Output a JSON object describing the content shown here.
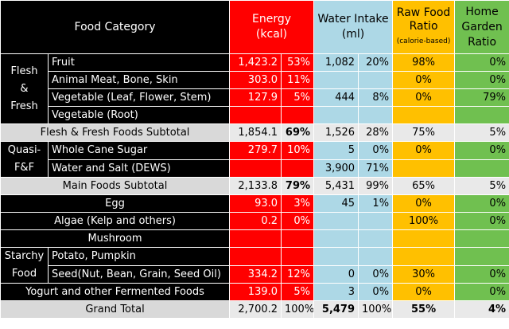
{
  "headers": {
    "category": "Food Category",
    "energy_l1": "Energy",
    "energy_l2": "(kcal)",
    "water_l1": "Water Intake",
    "water_l2": "(ml)",
    "raw_l1": "Raw Food",
    "raw_l2": "Ratio",
    "raw_l3": "(calorie-based)",
    "home_l1": "Home",
    "home_l2": "Garden",
    "home_l3": "Ratio"
  },
  "groups": {
    "flesh_l1": "Flesh",
    "flesh_l2": "&",
    "flesh_l3": "Fresh",
    "quasi_l1": "Quasi-",
    "quasi_l2": "F&F",
    "starchy_l1": "Starchy",
    "starchy_l2": "Food"
  },
  "rows": {
    "fruit": {
      "label": "Fruit",
      "energy": "1,423.2",
      "energy_pct": "53%",
      "water": "1,082",
      "water_pct": "20%",
      "raw": "98%",
      "home": "0%"
    },
    "meat": {
      "label": "Animal Meat, Bone, Skin",
      "energy": "303.0",
      "energy_pct": "11%",
      "water": "",
      "water_pct": "",
      "raw": "0%",
      "home": "0%"
    },
    "veg_leaf": {
      "label": "Vegetable (Leaf, Flower, Stem)",
      "energy": "127.9",
      "energy_pct": "5%",
      "water": "444",
      "water_pct": "8%",
      "raw": "0%",
      "home": "79%"
    },
    "veg_root": {
      "label": "Vegetable (Root)",
      "energy": "",
      "energy_pct": "",
      "water": "",
      "water_pct": "",
      "raw": "",
      "home": ""
    },
    "flesh_sub": {
      "label": "Flesh & Fresh Foods Subtotal",
      "energy": "1,854.1",
      "energy_pct": "69%",
      "water": "1,526",
      "water_pct": "28%",
      "raw": "75%",
      "home": "5%"
    },
    "sugar": {
      "label": "Whole Cane Sugar",
      "energy": "279.7",
      "energy_pct": "10%",
      "water": "5",
      "water_pct": "0%",
      "raw": "0%",
      "home": "0%"
    },
    "salt": {
      "label": "Water and Salt (DEWS)",
      "energy": "",
      "energy_pct": "",
      "water": "3,900",
      "water_pct": "71%",
      "raw": "",
      "home": ""
    },
    "main_sub": {
      "label": "Main Foods Subtotal",
      "energy": "2,133.8",
      "energy_pct": "79%",
      "water": "5,431",
      "water_pct": "99%",
      "raw": "65%",
      "home": "5%"
    },
    "egg": {
      "label": "Egg",
      "energy": "93.0",
      "energy_pct": "3%",
      "water": "45",
      "water_pct": "1%",
      "raw": "0%",
      "home": "0%"
    },
    "algae": {
      "label": "Algae (Kelp and others)",
      "energy": "0.2",
      "energy_pct": "0%",
      "water": "",
      "water_pct": "",
      "raw": "100%",
      "home": "0%"
    },
    "mushroom": {
      "label": "Mushroom",
      "energy": "",
      "energy_pct": "",
      "water": "",
      "water_pct": "",
      "raw": "",
      "home": ""
    },
    "potato": {
      "label": "Potato, Pumpkin",
      "energy": "",
      "energy_pct": "",
      "water": "",
      "water_pct": "",
      "raw": "",
      "home": ""
    },
    "seed": {
      "label": "Seed(Nut, Bean, Grain, Seed Oil)",
      "energy": "334.2",
      "energy_pct": "12%",
      "water": "0",
      "water_pct": "0%",
      "raw": "30%",
      "home": "0%"
    },
    "yogurt": {
      "label": "Yogurt and other Fermented Foods",
      "energy": "139.0",
      "energy_pct": "5%",
      "water": "3",
      "water_pct": "0%",
      "raw": "0%",
      "home": "0%"
    },
    "grand": {
      "label": "Grand Total",
      "energy": "2,700.2",
      "energy_pct": "100%",
      "water": "5,479",
      "water_pct": "100%",
      "raw": "55%",
      "home": "4%"
    }
  }
}
